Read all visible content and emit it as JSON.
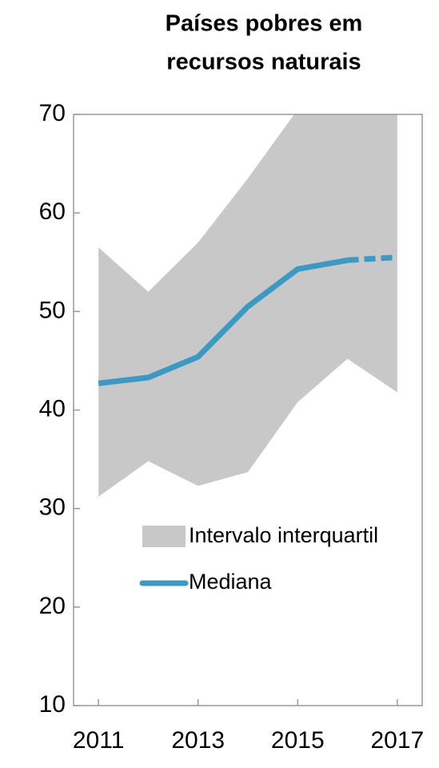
{
  "chart_data": {
    "type": "line",
    "title": [
      "Países pobres em",
      "recursos naturais"
    ],
    "x": [
      2011,
      2012,
      2013,
      2014,
      2015,
      2016,
      2017
    ],
    "xlim": [
      2010.5,
      2017.5
    ],
    "xticks": [
      2011,
      2013,
      2015,
      2017
    ],
    "ylim": [
      10,
      70
    ],
    "yticks": [
      10,
      20,
      30,
      40,
      50,
      60,
      70
    ],
    "band": {
      "name": "Intervalo interquartil",
      "color": "#c8c8c8",
      "upper": [
        56.5,
        52,
        57,
        63.5,
        70.5,
        74,
        76
      ],
      "lower": [
        31.2,
        34.8,
        32.3,
        33.7,
        40.8,
        45.2,
        41.8
      ]
    },
    "series": [
      {
        "name": "Mediana",
        "color": "#3a9ac4",
        "values": [
          42.7,
          43.3,
          45.4,
          50.5,
          54.3,
          55.2,
          55.5
        ]
      }
    ]
  }
}
